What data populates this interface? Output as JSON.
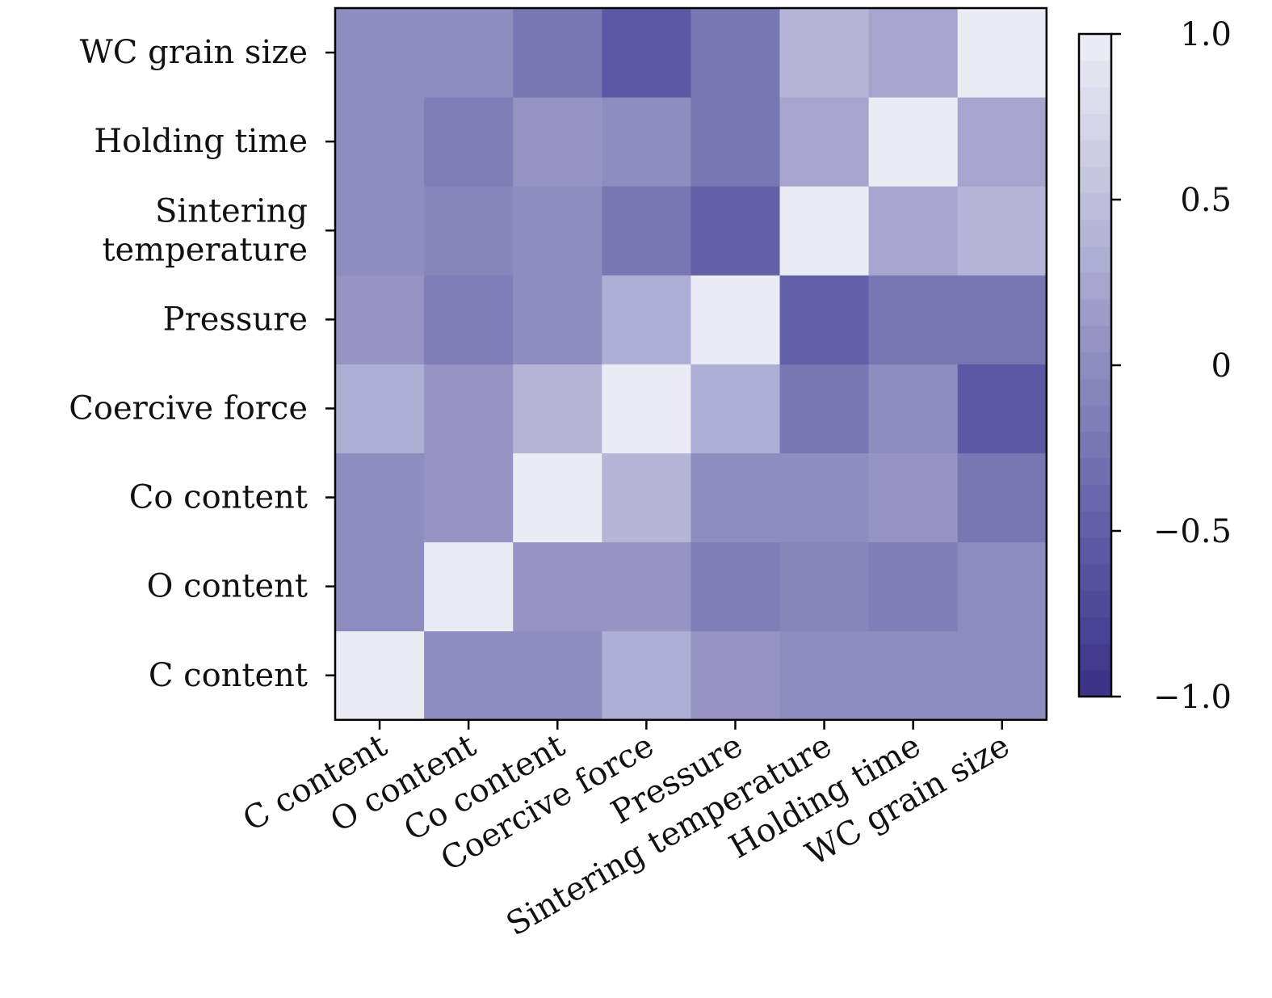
{
  "chart_data": {
    "type": "heatmap",
    "title": "",
    "xlabel": "",
    "ylabel": "",
    "x_categories": [
      "C content",
      "O content",
      "Co content",
      "Coercive force",
      "Pressure",
      "Sintering temperature",
      "Holding time",
      "WC grain size"
    ],
    "y_categories": [
      "C content",
      "O content",
      "Co content",
      "Coercive force",
      "Pressure",
      "Sintering temperature",
      "Holding time",
      "WC grain size"
    ],
    "y_tick_labels": [
      [
        "C content"
      ],
      [
        "O content"
      ],
      [
        "Co content"
      ],
      [
        "Coercive force"
      ],
      [
        "Pressure"
      ],
      [
        "Sintering",
        "temperature"
      ],
      [
        "Holding time"
      ],
      [
        "WC grain size"
      ]
    ],
    "values_rows_bottom_to_top": [
      [
        1.0,
        -0.02,
        -0.02,
        0.28,
        0.05,
        -0.02,
        -0.02,
        -0.02
      ],
      [
        -0.02,
        1.0,
        0.1,
        0.05,
        -0.15,
        -0.08,
        -0.15,
        -0.02
      ],
      [
        -0.02,
        0.1,
        1.0,
        0.4,
        -0.02,
        -0.02,
        0.1,
        -0.25
      ],
      [
        0.28,
        0.05,
        0.4,
        1.0,
        0.28,
        -0.25,
        -0.02,
        -0.6
      ],
      [
        0.05,
        -0.15,
        -0.02,
        0.28,
        1.0,
        -0.45,
        -0.25,
        -0.25
      ],
      [
        -0.02,
        -0.08,
        -0.02,
        -0.25,
        -0.45,
        1.0,
        0.2,
        0.4
      ],
      [
        -0.02,
        -0.15,
        0.1,
        -0.02,
        -0.25,
        0.2,
        1.0,
        0.2
      ],
      [
        -0.02,
        -0.02,
        -0.25,
        -0.6,
        -0.25,
        0.4,
        0.2,
        1.0
      ]
    ],
    "colorbar": {
      "range": [
        -1.0,
        1.0
      ],
      "ticks": [
        1.0,
        0.5,
        0,
        -0.5,
        -1.0
      ],
      "tick_labels": [
        "1.0",
        "0.5",
        "0",
        "−0.5",
        "−1.0"
      ],
      "colors": {
        "low": "#3a3088",
        "mid_low": "#625ea7",
        "mid": "#8f8cc0",
        "mid_high": "#c0bfdd",
        "high": "#efeff6"
      },
      "levels": 25
    },
    "grid": false
  }
}
